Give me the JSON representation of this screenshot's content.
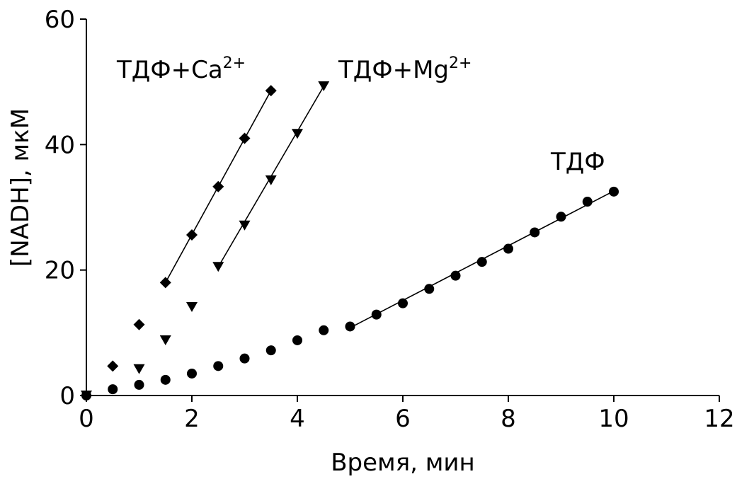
{
  "chart_data": {
    "type": "scatter",
    "xlabel": "Время, мин",
    "ylabel": "[NADH], мкМ",
    "xlim": [
      0,
      12
    ],
    "ylim": [
      0,
      60
    ],
    "xticks": [
      0,
      2,
      4,
      6,
      8,
      10,
      12
    ],
    "yticks": [
      0,
      20,
      40,
      60
    ],
    "grid": false,
    "series": [
      {
        "label_main": "ТДФ+Ca",
        "label_sup": "2+",
        "marker": "diamond",
        "points": [
          {
            "x": 0,
            "y": 0
          },
          {
            "x": 0.5,
            "y": 4.7
          },
          {
            "x": 1,
            "y": 11.3
          },
          {
            "x": 1.5,
            "y": 18.0
          },
          {
            "x": 2,
            "y": 25.6
          },
          {
            "x": 2.5,
            "y": 33.3
          },
          {
            "x": 3,
            "y": 41.0
          },
          {
            "x": 3.5,
            "y": 48.6
          }
        ],
        "fit_line": {
          "x": [
            1.5,
            3.5
          ],
          "y": [
            18.0,
            48.6
          ]
        }
      },
      {
        "label_main": "ТДФ+Mg",
        "label_sup": "2+",
        "marker": "triangle-down",
        "points": [
          {
            "x": 0,
            "y": 0
          },
          {
            "x": 1,
            "y": 4.2
          },
          {
            "x": 1.5,
            "y": 8.8
          },
          {
            "x": 2,
            "y": 14.1
          },
          {
            "x": 2.5,
            "y": 20.5
          },
          {
            "x": 3,
            "y": 27.1
          },
          {
            "x": 3.5,
            "y": 34.3
          },
          {
            "x": 4,
            "y": 41.7
          },
          {
            "x": 4.5,
            "y": 49.3
          }
        ],
        "fit_line": {
          "x": [
            2.5,
            4.5
          ],
          "y": [
            20.5,
            49.3
          ]
        }
      },
      {
        "label_main": "ТДФ",
        "label_sup": "",
        "marker": "circle",
        "points": [
          {
            "x": 0,
            "y": 0
          },
          {
            "x": 0.5,
            "y": 1.0
          },
          {
            "x": 1,
            "y": 1.7
          },
          {
            "x": 1.5,
            "y": 2.5
          },
          {
            "x": 2,
            "y": 3.5
          },
          {
            "x": 2.5,
            "y": 4.7
          },
          {
            "x": 3,
            "y": 5.9
          },
          {
            "x": 3.5,
            "y": 7.2
          },
          {
            "x": 4,
            "y": 8.8
          },
          {
            "x": 4.5,
            "y": 10.4
          },
          {
            "x": 5,
            "y": 11.0
          },
          {
            "x": 5.5,
            "y": 12.9
          },
          {
            "x": 6,
            "y": 14.7
          },
          {
            "x": 6.5,
            "y": 17.0
          },
          {
            "x": 7,
            "y": 19.1
          },
          {
            "x": 7.5,
            "y": 21.3
          },
          {
            "x": 8,
            "y": 23.4
          },
          {
            "x": 8.5,
            "y": 26.0
          },
          {
            "x": 9,
            "y": 28.5
          },
          {
            "x": 9.5,
            "y": 30.9
          },
          {
            "x": 10,
            "y": 32.5
          }
        ],
        "fit_line": {
          "x": [
            5,
            10
          ],
          "y": [
            10.8,
            32.6
          ]
        }
      }
    ]
  }
}
